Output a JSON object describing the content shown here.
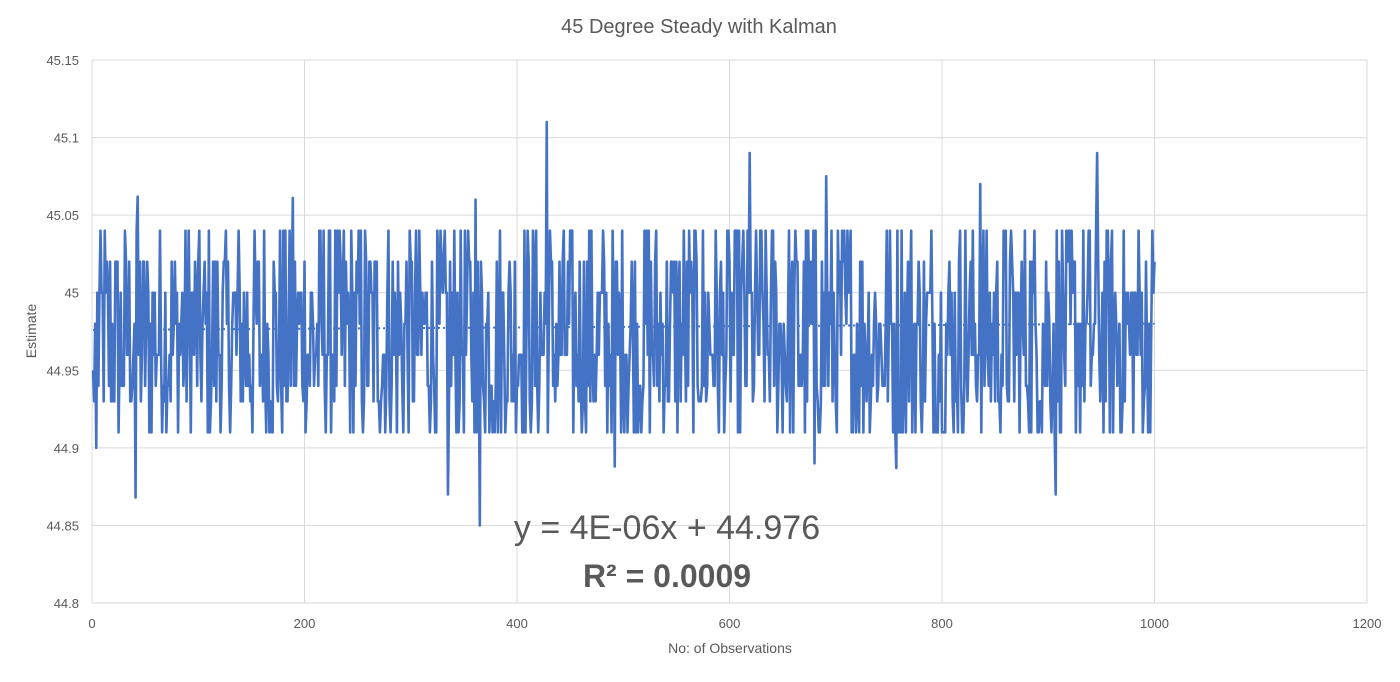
{
  "chart_data": {
    "type": "line",
    "title": "45 Degree Steady with Kalman",
    "xlabel": "No: of Observations",
    "ylabel": "Estimate",
    "xlim": [
      0,
      1200
    ],
    "ylim": [
      44.8,
      45.15
    ],
    "x_ticks": [
      "0",
      "200",
      "400",
      "600",
      "800",
      "1000",
      "1200"
    ],
    "y_ticks": [
      "44.8",
      "44.85",
      "44.9",
      "44.95",
      "45",
      "45.05",
      "45.1",
      "45.15"
    ],
    "grid": true,
    "series": [
      {
        "color": "#4472c4",
        "x_start": 1,
        "x_step": 1,
        "n_points": 1000,
        "typical_values": [
          44.91,
          44.93,
          44.94,
          44.96,
          44.98,
          45.0,
          45.02,
          45.04
        ],
        "notable_points": [
          {
            "x": 4,
            "y": 44.9
          },
          {
            "x": 41,
            "y": 44.868
          },
          {
            "x": 43,
            "y": 45.062
          },
          {
            "x": 189,
            "y": 45.061
          },
          {
            "x": 335,
            "y": 44.87
          },
          {
            "x": 361,
            "y": 45.06
          },
          {
            "x": 365,
            "y": 44.85
          },
          {
            "x": 428,
            "y": 45.11
          },
          {
            "x": 492,
            "y": 44.888
          },
          {
            "x": 619,
            "y": 45.09
          },
          {
            "x": 680,
            "y": 44.89
          },
          {
            "x": 691,
            "y": 45.075
          },
          {
            "x": 757,
            "y": 44.887
          },
          {
            "x": 836,
            "y": 45.07
          },
          {
            "x": 907,
            "y": 44.87
          },
          {
            "x": 946,
            "y": 45.09
          },
          {
            "x": 999,
            "y": 45.0
          }
        ]
      }
    ],
    "trendline": {
      "type": "linear",
      "slope": 4e-06,
      "intercept": 44.976,
      "style": "dotted",
      "color": "#4472c4",
      "equation_label": "y = 4E-06x + 44.976",
      "r2_label": "R² = 0.0009"
    }
  }
}
